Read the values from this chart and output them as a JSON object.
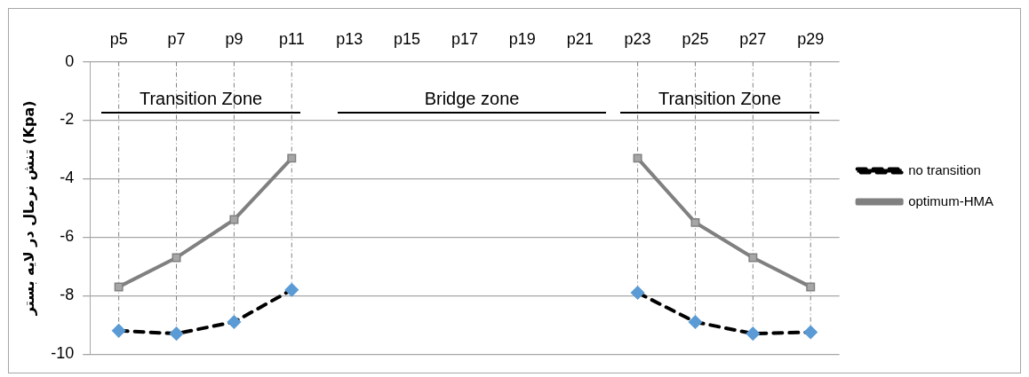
{
  "chart_data": {
    "type": "line",
    "ylabel": "تنش نرمال در لایه بستر (Kpa)",
    "categories": [
      "p5",
      "p7",
      "p9",
      "p11",
      "p13",
      "p15",
      "p17",
      "p19",
      "p21",
      "p23",
      "p25",
      "p27",
      "p29"
    ],
    "series": [
      {
        "name": "no transition",
        "color": "#000000",
        "colors": [
          "#5b9bd5",
          "#5b9bd5",
          "#5b9bd5",
          "#5b9bd5",
          "#5b9bd5",
          "#5b9bd5",
          "#5b9bd5",
          "#5b9bd5",
          "#5b9bd5",
          "#5b9bd5",
          "#5b9bd5",
          "#5b9bd5",
          "#5b9bd5"
        ],
        "marker": "diamond",
        "line_style": "dashed",
        "values": [
          -9.2,
          -9.3,
          -8.9,
          -7.8,
          null,
          null,
          null,
          null,
          null,
          -7.9,
          -8.9,
          -9.3,
          -9.25
        ]
      },
      {
        "name": "optimum-HMA",
        "color": "#808080",
        "colors": [
          "#a6a6a6",
          "#a6a6a6",
          "#a6a6a6",
          "#a6a6a6",
          "#a6a6a6",
          "#a6a6a6",
          "#a6a6a6",
          "#a6a6a6",
          "#a6a6a6",
          "#a6a6a6",
          "#a6a6a6",
          "#a6a6a6",
          "#a6a6a6"
        ],
        "marker": "square",
        "line_style": "solid",
        "values": [
          -7.7,
          -6.7,
          -5.4,
          -3.3,
          null,
          null,
          null,
          null,
          null,
          -3.3,
          -5.5,
          -6.7,
          -7.7
        ]
      }
    ],
    "ylim": [
      -10,
      0
    ],
    "yticks": [
      -10,
      -8,
      -6,
      -4,
      -2,
      0
    ],
    "grid": "y",
    "legend": "right",
    "annotations": [
      "Transition Zone",
      "Bridge zone",
      "Transition Zone"
    ],
    "ref_lines": [
      {
        "axis": "x",
        "value": "p5",
        "color": "#808080",
        "line_style": "dashed"
      },
      {
        "axis": "x",
        "value": "p7",
        "color": "#808080",
        "line_style": "dashed"
      },
      {
        "axis": "x",
        "value": "p9",
        "color": "#808080",
        "line_style": "dashed"
      },
      {
        "axis": "x",
        "value": "p11",
        "color": "#808080",
        "line_style": "dashed"
      },
      {
        "axis": "x",
        "value": "p23",
        "color": "#808080",
        "line_style": "dashed"
      },
      {
        "axis": "x",
        "value": "p25",
        "color": "#808080",
        "line_style": "dashed"
      },
      {
        "axis": "x",
        "value": "p27",
        "color": "#808080",
        "line_style": "dashed"
      },
      {
        "axis": "x",
        "value": "p29",
        "color": "#808080",
        "line_style": "dashed"
      }
    ]
  }
}
